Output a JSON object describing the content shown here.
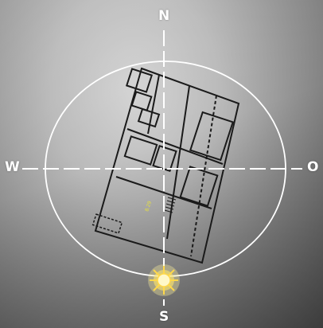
{
  "compass": {
    "north_label": "N",
    "south_label": "S",
    "west_label": "W",
    "east_label": "O"
  },
  "sun": {
    "icon": "sun-icon",
    "color": "#ffd84a"
  },
  "floor_plan": {
    "icon": "floor-plan-icon",
    "room_label": "8.29"
  },
  "colors": {
    "ring": "#ffffff",
    "axis": "#ffffff",
    "plan_line": "#1a1a1a",
    "room_label": "#e8e23a"
  }
}
